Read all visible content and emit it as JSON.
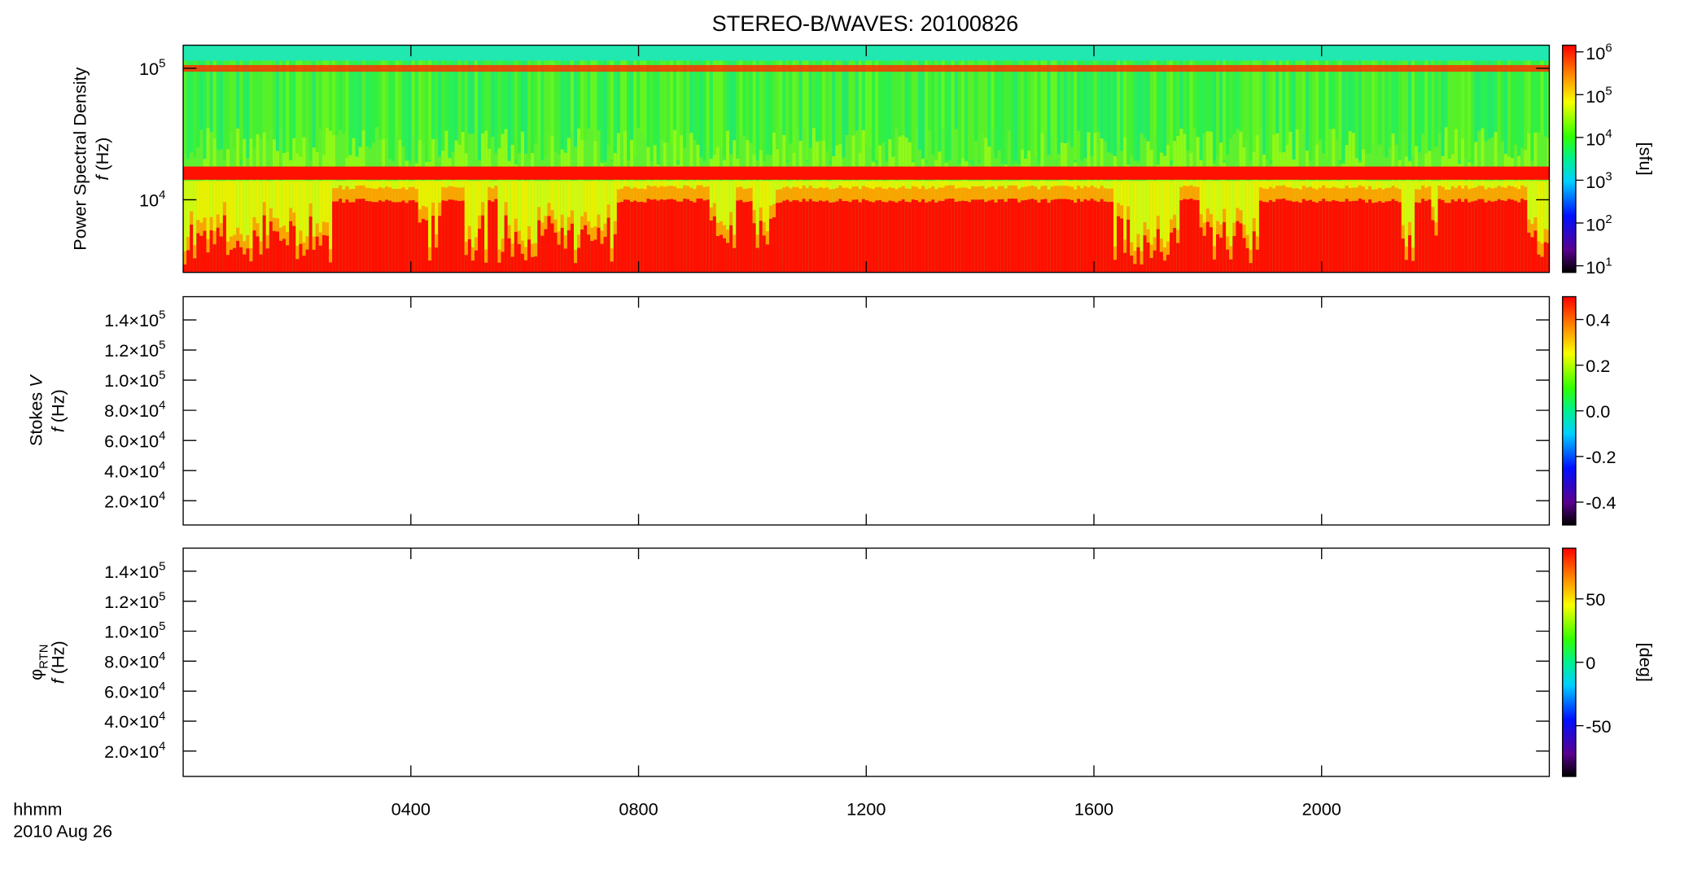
{
  "title": "STEREO-B/WAVES: 20100826",
  "xaxis": {
    "xlim": [
      0,
      24
    ],
    "ticks": [
      {
        "value": 4,
        "label": "0400"
      },
      {
        "value": 8,
        "label": "0800"
      },
      {
        "value": 12,
        "label": "1200"
      },
      {
        "value": 16,
        "label": "1600"
      },
      {
        "value": 20,
        "label": "2000"
      }
    ],
    "label_lines": [
      "hhmm",
      "2010 Aug 26"
    ]
  },
  "panels": [
    {
      "ylabel_lines": [
        [
          {
            "text": "Power Spectral Density"
          }
        ],
        [
          {
            "text": "f",
            "italic": true
          },
          {
            "text": " (Hz)"
          }
        ]
      ],
      "log": true,
      "ylim": [
        2800,
        150000
      ],
      "yticks": [
        {
          "value": 10000,
          "base": "10",
          "exp": "4"
        },
        {
          "value": 100000,
          "base": "10",
          "exp": "5"
        }
      ],
      "colorbar": {
        "label": "[sfu]",
        "log": true,
        "lim": [
          7,
          1430000
        ],
        "ticks": [
          {
            "value": 10,
            "base": "10",
            "exp": "1"
          },
          {
            "value": 100,
            "base": "10",
            "exp": "2"
          },
          {
            "value": 1000,
            "base": "10",
            "exp": "3"
          },
          {
            "value": 10000,
            "base": "10",
            "exp": "4"
          },
          {
            "value": 100000,
            "base": "10",
            "exp": "5"
          },
          {
            "value": 1000000,
            "base": "10",
            "exp": "6"
          }
        ]
      }
    },
    {
      "ylabel_lines": [
        [
          {
            "text": "Stokes "
          },
          {
            "text": "V",
            "italic": true
          }
        ],
        [
          {
            "text": "f",
            "italic": true
          },
          {
            "text": " (Hz)"
          }
        ]
      ],
      "log": false,
      "ylim": [
        3900,
        155400
      ],
      "yticks": [
        {
          "value": 20000,
          "base": "2.0×10",
          "exp": "4"
        },
        {
          "value": 40000,
          "base": "4.0×10",
          "exp": "4"
        },
        {
          "value": 60000,
          "base": "6.0×10",
          "exp": "4"
        },
        {
          "value": 80000,
          "base": "8.0×10",
          "exp": "4"
        },
        {
          "value": 100000,
          "base": "1.0×10",
          "exp": "5"
        },
        {
          "value": 120000,
          "base": "1.2×10",
          "exp": "5"
        },
        {
          "value": 140000,
          "base": "1.4×10",
          "exp": "5"
        }
      ],
      "colorbar": {
        "log": false,
        "lim": [
          -0.5,
          0.5
        ],
        "ticks": [
          {
            "value": -0.4,
            "label": "-0.4"
          },
          {
            "value": -0.2,
            "label": "-0.2"
          },
          {
            "value": 0,
            "label": "0.0"
          },
          {
            "value": 0.2,
            "label": "0.2"
          },
          {
            "value": 0.4,
            "label": "0.4"
          }
        ]
      }
    },
    {
      "ylabel_lines": [
        [
          {
            "text": "φ"
          },
          {
            "text": "RTN",
            "sub": true
          }
        ],
        [
          {
            "text": "f",
            "italic": true
          },
          {
            "text": " (Hz)"
          }
        ]
      ],
      "log": false,
      "ylim": [
        3100,
        155400
      ],
      "yticks": [
        {
          "value": 20000,
          "base": "2.0×10",
          "exp": "4"
        },
        {
          "value": 40000,
          "base": "4.0×10",
          "exp": "4"
        },
        {
          "value": 60000,
          "base": "6.0×10",
          "exp": "4"
        },
        {
          "value": 80000,
          "base": "8.0×10",
          "exp": "4"
        },
        {
          "value": 100000,
          "base": "1.0×10",
          "exp": "5"
        },
        {
          "value": 120000,
          "base": "1.2×10",
          "exp": "5"
        },
        {
          "value": 140000,
          "base": "1.4×10",
          "exp": "5"
        }
      ],
      "colorbar": {
        "label": "[deg]",
        "log": false,
        "lim": [
          -90,
          90
        ],
        "ticks": [
          -50,
          0,
          50
        ]
      }
    }
  ]
}
